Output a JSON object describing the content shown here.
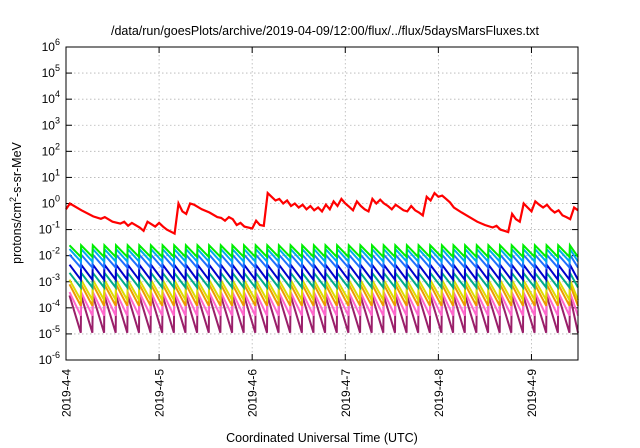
{
  "chart_data": {
    "type": "line",
    "title": "/data/run/goesPlots/archive/2019-04-09/12:00/flux/../flux/5daysMarsFluxes.txt",
    "xlabel": "Coordinated Universal Time (UTC)",
    "ylabel": {
      "pre": "protons/cm",
      "sup": "2",
      "post": "-s-sr-MeV"
    },
    "xscale": "date",
    "yscale": "log",
    "xlim": [
      "2019-04-04T00:00",
      "2019-04-09T12:00"
    ],
    "ylim": [
      1e-06,
      1000000.0
    ],
    "grid": true,
    "legend": "none",
    "x_ticks": [
      "2019-4-4",
      "2019-4-5",
      "2019-4-6",
      "2019-4-7",
      "2019-4-8",
      "2019-4-9"
    ],
    "y_ticks": [
      {
        "base": "10",
        "exp": "-6"
      },
      {
        "base": "10",
        "exp": "-5"
      },
      {
        "base": "10",
        "exp": "-4"
      },
      {
        "base": "10",
        "exp": "-3"
      },
      {
        "base": "10",
        "exp": "-2"
      },
      {
        "base": "10",
        "exp": "-1"
      },
      {
        "base": "10",
        "exp": "0"
      },
      {
        "base": "10",
        "exp": "1"
      },
      {
        "base": "10",
        "exp": "2"
      },
      {
        "base": "10",
        "exp": "3"
      },
      {
        "base": "10",
        "exp": "4"
      },
      {
        "base": "10",
        "exp": "5"
      },
      {
        "base": "10",
        "exp": "6"
      }
    ],
    "series": [
      {
        "color": "#ff0000",
        "points": [
          [
            "2019-04-04T00:00",
            0.6
          ],
          [
            "2019-04-04T01:00",
            1.0
          ],
          [
            "2019-04-04T04:00",
            0.55
          ],
          [
            "2019-04-04T07:00",
            0.32
          ],
          [
            "2019-04-04T09:00",
            0.26
          ],
          [
            "2019-04-04T10:00",
            0.3
          ],
          [
            "2019-04-04T12:00",
            0.2
          ],
          [
            "2019-04-04T14:00",
            0.17
          ],
          [
            "2019-04-04T15:00",
            0.2
          ],
          [
            "2019-04-04T16:00",
            0.14
          ],
          [
            "2019-04-04T17:00",
            0.18
          ],
          [
            "2019-04-04T19:00",
            0.12
          ],
          [
            "2019-04-04T20:00",
            0.09
          ],
          [
            "2019-04-04T21:00",
            0.2
          ],
          [
            "2019-04-04T23:00",
            0.13
          ],
          [
            "2019-04-05T00:00",
            0.18
          ],
          [
            "2019-04-05T01:00",
            0.13
          ],
          [
            "2019-04-05T02:00",
            0.1
          ],
          [
            "2019-04-05T04:00",
            0.07
          ],
          [
            "2019-04-05T05:00",
            1.0
          ],
          [
            "2019-04-05T06:00",
            0.5
          ],
          [
            "2019-04-05T07:00",
            0.4
          ],
          [
            "2019-04-05T08:00",
            1.0
          ],
          [
            "2019-04-05T09:00",
            0.9
          ],
          [
            "2019-04-05T11:00",
            0.6
          ],
          [
            "2019-04-05T13:00",
            0.45
          ],
          [
            "2019-04-05T15:00",
            0.3
          ],
          [
            "2019-04-05T16:00",
            0.28
          ],
          [
            "2019-04-05T17:00",
            0.22
          ],
          [
            "2019-04-05T18:00",
            0.3
          ],
          [
            "2019-04-05T19:00",
            0.25
          ],
          [
            "2019-04-05T20:00",
            0.15
          ],
          [
            "2019-04-05T21:00",
            0.18
          ],
          [
            "2019-04-05T22:00",
            0.13
          ],
          [
            "2019-04-06T00:00",
            0.11
          ],
          [
            "2019-04-06T01:00",
            0.22
          ],
          [
            "2019-04-06T02:00",
            0.15
          ],
          [
            "2019-04-06T03:00",
            0.14
          ],
          [
            "2019-04-06T04:00",
            2.5
          ],
          [
            "2019-04-06T05:00",
            1.8
          ],
          [
            "2019-04-06T06:00",
            1.3
          ],
          [
            "2019-04-06T07:00",
            1.5
          ],
          [
            "2019-04-06T08:00",
            1.0
          ],
          [
            "2019-04-06T09:00",
            1.3
          ],
          [
            "2019-04-06T10:00",
            0.8
          ],
          [
            "2019-04-06T11:00",
            1.0
          ],
          [
            "2019-04-06T12:00",
            0.7
          ],
          [
            "2019-04-06T13:00",
            0.9
          ],
          [
            "2019-04-06T14:00",
            0.6
          ],
          [
            "2019-04-06T15:00",
            0.8
          ],
          [
            "2019-04-06T16:00",
            0.55
          ],
          [
            "2019-04-06T17:00",
            0.7
          ],
          [
            "2019-04-06T18:00",
            0.5
          ],
          [
            "2019-04-06T19:00",
            0.9
          ],
          [
            "2019-04-06T20:00",
            0.6
          ],
          [
            "2019-04-06T21:00",
            1.2
          ],
          [
            "2019-04-06T22:00",
            0.8
          ],
          [
            "2019-04-06T23:00",
            1.5
          ],
          [
            "2019-04-07T00:00",
            1.0
          ],
          [
            "2019-04-07T01:00",
            0.75
          ],
          [
            "2019-04-07T02:00",
            0.55
          ],
          [
            "2019-04-07T03:00",
            1.2
          ],
          [
            "2019-04-07T04:00",
            0.8
          ],
          [
            "2019-04-07T05:00",
            0.6
          ],
          [
            "2019-04-07T06:00",
            0.5
          ],
          [
            "2019-04-07T07:00",
            1.5
          ],
          [
            "2019-04-07T08:00",
            1.0
          ],
          [
            "2019-04-07T09:00",
            1.4
          ],
          [
            "2019-04-07T10:00",
            1.0
          ],
          [
            "2019-04-07T11:00",
            0.8
          ],
          [
            "2019-04-07T12:00",
            0.6
          ],
          [
            "2019-04-07T13:00",
            0.9
          ],
          [
            "2019-04-07T14:00",
            0.7
          ],
          [
            "2019-04-07T15:00",
            0.55
          ],
          [
            "2019-04-07T16:00",
            0.5
          ],
          [
            "2019-04-07T17:00",
            0.8
          ],
          [
            "2019-04-07T18:00",
            0.55
          ],
          [
            "2019-04-07T19:00",
            0.45
          ],
          [
            "2019-04-07T20:00",
            0.35
          ],
          [
            "2019-04-07T21:00",
            1.8
          ],
          [
            "2019-04-07T22:00",
            1.3
          ],
          [
            "2019-04-07T23:00",
            2.5
          ],
          [
            "2019-04-08T00:00",
            1.8
          ],
          [
            "2019-04-08T01:00",
            2.0
          ],
          [
            "2019-04-08T02:00",
            1.5
          ],
          [
            "2019-04-08T03:00",
            1.1
          ],
          [
            "2019-04-08T04:00",
            0.7
          ],
          [
            "2019-04-08T06:00",
            0.45
          ],
          [
            "2019-04-08T08:00",
            0.3
          ],
          [
            "2019-04-08T10:00",
            0.2
          ],
          [
            "2019-04-08T12:00",
            0.15
          ],
          [
            "2019-04-08T14:00",
            0.12
          ],
          [
            "2019-04-08T15:00",
            0.14
          ],
          [
            "2019-04-08T16:00",
            0.1
          ],
          [
            "2019-04-08T17:00",
            0.09
          ],
          [
            "2019-04-08T18:00",
            0.08
          ],
          [
            "2019-04-08T19:00",
            0.4
          ],
          [
            "2019-04-08T20:00",
            0.25
          ],
          [
            "2019-04-08T21:00",
            0.2
          ],
          [
            "2019-04-08T22:00",
            1.0
          ],
          [
            "2019-04-08T23:00",
            0.7
          ],
          [
            "2019-04-09T00:00",
            0.5
          ],
          [
            "2019-04-09T01:00",
            1.2
          ],
          [
            "2019-04-09T02:00",
            0.9
          ],
          [
            "2019-04-09T03:00",
            0.7
          ],
          [
            "2019-04-09T04:00",
            0.9
          ],
          [
            "2019-04-09T05:00",
            0.6
          ],
          [
            "2019-04-09T06:00",
            0.45
          ],
          [
            "2019-04-09T07:00",
            0.55
          ],
          [
            "2019-04-09T08:00",
            0.35
          ],
          [
            "2019-04-09T09:00",
            0.3
          ],
          [
            "2019-04-09T10:00",
            0.25
          ],
          [
            "2019-04-09T11:00",
            0.7
          ],
          [
            "2019-04-09T12:00",
            0.55
          ]
        ]
      },
      {
        "color": "#00ee00",
        "period_hours": 3,
        "peak": 0.025,
        "trough": 0.009
      },
      {
        "color": "#00aaee",
        "period_hours": 3,
        "peak": 0.018,
        "trough": 0.006
      },
      {
        "color": "#1e6fff",
        "period_hours": 3,
        "peak": 0.011,
        "trough": 0.0035
      },
      {
        "color": "#0000cc",
        "period_hours": 3,
        "peak": 0.0045,
        "trough": 0.0012
      },
      {
        "color": "#00aa88",
        "period_hours": 3,
        "peak": 0.0022,
        "trough": 0.0006
      },
      {
        "color": "#dddd00",
        "period_hours": 3,
        "peak": 0.0012,
        "trough": 0.0002
      },
      {
        "color": "#ee9900",
        "period_hours": 3,
        "peak": 0.0008,
        "trough": 0.00012
      },
      {
        "color": "#ff66cc",
        "period_hours": 3,
        "peak": 0.0004,
        "trough": 5e-05
      },
      {
        "color": "#9a1f6a",
        "period_hours": 3,
        "peak": 0.0003,
        "trough": 1.1e-05
      }
    ]
  }
}
